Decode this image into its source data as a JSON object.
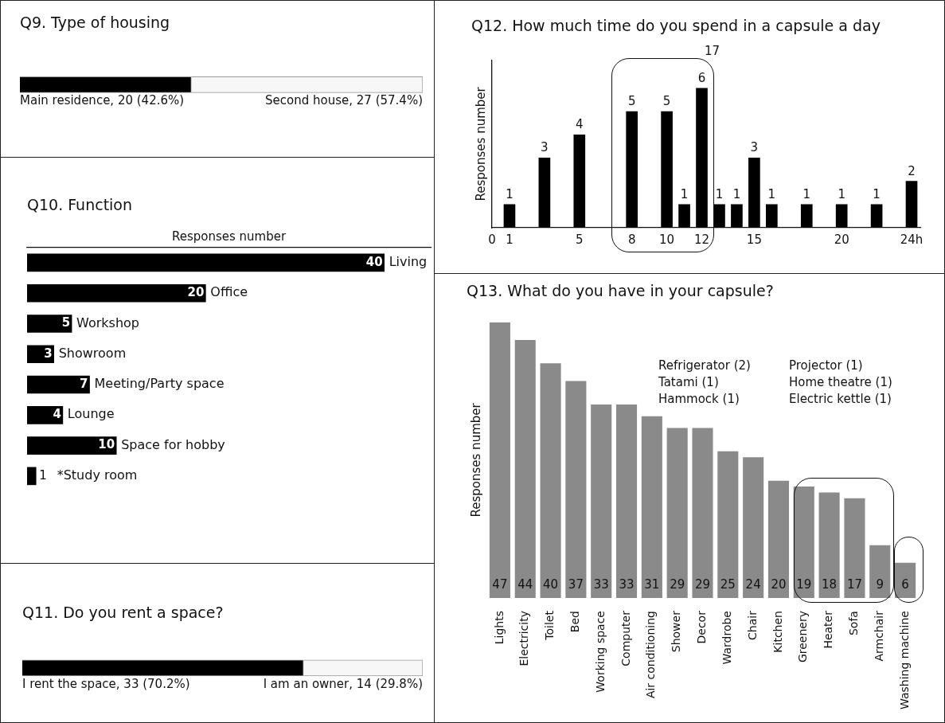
{
  "chart_data": [
    {
      "type": "bar",
      "title": "Q9. Type of housing",
      "orientation": "horizontal",
      "stacked": true,
      "categories": [
        null
      ],
      "tick_labels": false,
      "series": [
        {
          "color": "#000000",
          "values": [
            20
          ],
          "value_labels": [
            "Main residence, 20 (42.6%)"
          ]
        },
        {
          "color": "#f7f7f7",
          "values": [
            27
          ],
          "value_labels": [
            "Second house, 27 (57.4%)"
          ]
        }
      ]
    },
    {
      "type": "bar",
      "title": "Q10. Function",
      "xlabel": "Responses number",
      "orientation": "horizontal",
      "tick_labels": false,
      "data_labels": true,
      "color": "#000000",
      "categories": [
        "Living",
        "Office",
        "Workshop",
        "Showroom",
        "Meeting/Party space",
        "Lounge",
        "Space for hobby",
        "*Study room"
      ],
      "values": [
        40,
        20,
        5,
        3,
        7,
        4,
        10,
        1
      ]
    },
    {
      "type": "bar",
      "title": "Q11. Do you rent a space?",
      "orientation": "horizontal",
      "stacked": true,
      "categories": [
        null
      ],
      "tick_labels": false,
      "series": [
        {
          "color": "#000000",
          "values": [
            33
          ],
          "value_labels": [
            "I rent the space, 33 (70.2%)"
          ]
        },
        {
          "color": "#f7f7f7",
          "values": [
            14
          ],
          "value_labels": [
            "I am an owner, 14 (29.8%)"
          ]
        }
      ]
    },
    {
      "type": "bar",
      "title": "Q12. How much time do you spend in a capsule a day",
      "ylabel": "Responses number",
      "color": "#000000",
      "data_labels": true,
      "tick_labels": "x",
      "x": [
        1,
        3,
        5,
        8,
        10,
        11,
        12,
        13,
        14,
        15,
        16,
        18,
        20,
        22,
        24
      ],
      "values": [
        1,
        3,
        4,
        5,
        5,
        1,
        6,
        1,
        1,
        3,
        1,
        1,
        1,
        1,
        2
      ],
      "xlim": [
        0,
        24.5
      ],
      "xticks": [
        0,
        1,
        5,
        8,
        10,
        12,
        15,
        20,
        {
          "value": 24,
          "label": "24h"
        }
      ],
      "annotations": [
        "17"
      ]
    },
    {
      "type": "bar",
      "title": "Q13. What do you have in your capsule?",
      "ylabel": "Responses number",
      "color": "#8a8a8a",
      "data_labels": true,
      "tick_labels": "x",
      "categories": [
        "Lights",
        "Electricity",
        "Toilet",
        "Bed",
        "Working space",
        "Computer",
        "Air conditioning",
        "Shower",
        "Decor",
        "Wardrobe",
        "Chair",
        "Kitchen",
        "Greenery",
        "Heater",
        "Sofa",
        "Armchair",
        "Washing machine"
      ],
      "values": [
        47,
        44,
        40,
        37,
        33,
        33,
        31,
        29,
        29,
        25,
        24,
        20,
        19,
        18,
        17,
        9,
        6
      ],
      "annotations": [
        "Refrigerator (2)\nTatami (1)\nHammock (1)",
        "Projector (1)\nHome theatre (1)\nElectric kettle (1)"
      ]
    }
  ]
}
